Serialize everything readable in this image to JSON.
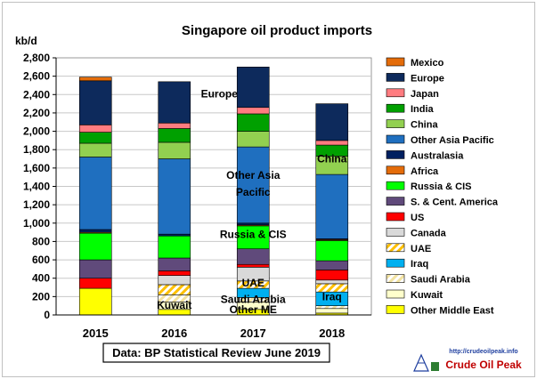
{
  "chart_data": {
    "type": "bar",
    "stacked": true,
    "title": "Singapore oil product imports",
    "ylabel": "kb/d",
    "ylim": [
      0,
      2800
    ],
    "ytick_step": 200,
    "ytick_labels": [
      "0",
      "200",
      "400",
      "600",
      "800",
      "1,000",
      "1,200",
      "1,400",
      "1,600",
      "1,800",
      "2,000",
      "2,200",
      "2,400",
      "2,600",
      "2,800"
    ],
    "grid": true,
    "legend_position": "right",
    "categories": [
      "2015",
      "2016",
      "2017",
      "2018"
    ],
    "series": [
      {
        "name": "Other Middle East",
        "color": "#ffff00",
        "pattern": "solid",
        "values": [
          290,
          60,
          60,
          20
        ]
      },
      {
        "name": "Kuwait",
        "color": "#ffffcc",
        "pattern": "solid",
        "values": [
          0,
          80,
          80,
          50
        ]
      },
      {
        "name": "Saudi Arabia",
        "color": "#fff2b0",
        "pattern": "hatch",
        "values": [
          0,
          80,
          50,
          30
        ]
      },
      {
        "name": "Iraq",
        "color": "#00b0f0",
        "pattern": "solid",
        "values": [
          0,
          0,
          100,
          150
        ]
      },
      {
        "name": "UAE",
        "color": "#ffc000",
        "pattern": "hatch",
        "values": [
          0,
          110,
          80,
          90
        ]
      },
      {
        "name": "Canada",
        "color": "#d9d9d9",
        "pattern": "solid",
        "values": [
          0,
          100,
          150,
          40
        ]
      },
      {
        "name": "US",
        "color": "#ff0000",
        "pattern": "solid",
        "values": [
          110,
          50,
          30,
          110
        ]
      },
      {
        "name": "S. & Cent. America",
        "color": "#604a7b",
        "pattern": "solid",
        "values": [
          200,
          140,
          170,
          100
        ]
      },
      {
        "name": "Russia & CIS",
        "color": "#00ff00",
        "pattern": "solid",
        "values": [
          290,
          240,
          250,
          220
        ]
      },
      {
        "name": "Africa",
        "color": "#e46c0a",
        "pattern": "solid",
        "values": [
          10,
          0,
          10,
          10
        ]
      },
      {
        "name": "Australasia",
        "color": "#002060",
        "pattern": "solid",
        "values": [
          30,
          20,
          20,
          10
        ]
      },
      {
        "name": "Other Asia Pacific",
        "color": "#1f6fbf",
        "pattern": "solid",
        "values": [
          790,
          820,
          830,
          700
        ]
      },
      {
        "name": "China",
        "color": "#92d050",
        "pattern": "solid",
        "values": [
          150,
          180,
          170,
          200
        ]
      },
      {
        "name": "India",
        "color": "#00a000",
        "pattern": "solid",
        "values": [
          120,
          150,
          190,
          120
        ]
      },
      {
        "name": "Japan",
        "color": "#ff7c80",
        "pattern": "solid",
        "values": [
          80,
          60,
          70,
          50
        ]
      },
      {
        "name": "Europe",
        "color": "#0d2a5c",
        "pattern": "solid",
        "values": [
          480,
          450,
          440,
          400
        ]
      },
      {
        "name": "Mexico",
        "color": "#e46c0a",
        "pattern": "solid",
        "values": [
          40,
          0,
          0,
          0
        ]
      }
    ],
    "legend_order": [
      "Mexico",
      "Europe",
      "Japan",
      "India",
      "China",
      "Other Asia Pacific",
      "Australasia",
      "Africa",
      "Russia & CIS",
      "S. & Cent. America",
      "US",
      "Canada",
      "UAE",
      "Iraq",
      "Saudi Arabia",
      "Kuwait",
      "Other Middle East"
    ],
    "annotations": [
      {
        "text": "Europe",
        "category": "2017",
        "offset": -1,
        "y": 2370
      },
      {
        "text": "Other Asia",
        "category": "2017",
        "offset": 0,
        "y": 1480
      },
      {
        "text": "Pacific",
        "category": "2017",
        "offset": 0,
        "y": 1300
      },
      {
        "text": "China",
        "category": "2018",
        "offset": 0,
        "y": 1660
      },
      {
        "text": "Russia & CIS",
        "category": "2017",
        "offset": 0,
        "y": 840
      },
      {
        "text": "UAE",
        "category": "2017",
        "offset": 0,
        "y": 310
      },
      {
        "text": "Saudi Arabia",
        "category": "2017",
        "offset": 0,
        "y": 130
      },
      {
        "text": "Other ME",
        "category": "2017",
        "offset": 0,
        "y": 20
      },
      {
        "text": "Iraq",
        "category": "2018",
        "offset": 0,
        "y": 160
      },
      {
        "text": "Kuwait",
        "category": "2016",
        "offset": 0,
        "y": 70
      }
    ],
    "source": "Data: BP Statistical Review June 2019"
  },
  "logo": {
    "url_text": "http://crudeoilpeak.info",
    "name": "Crude Oil Peak"
  }
}
